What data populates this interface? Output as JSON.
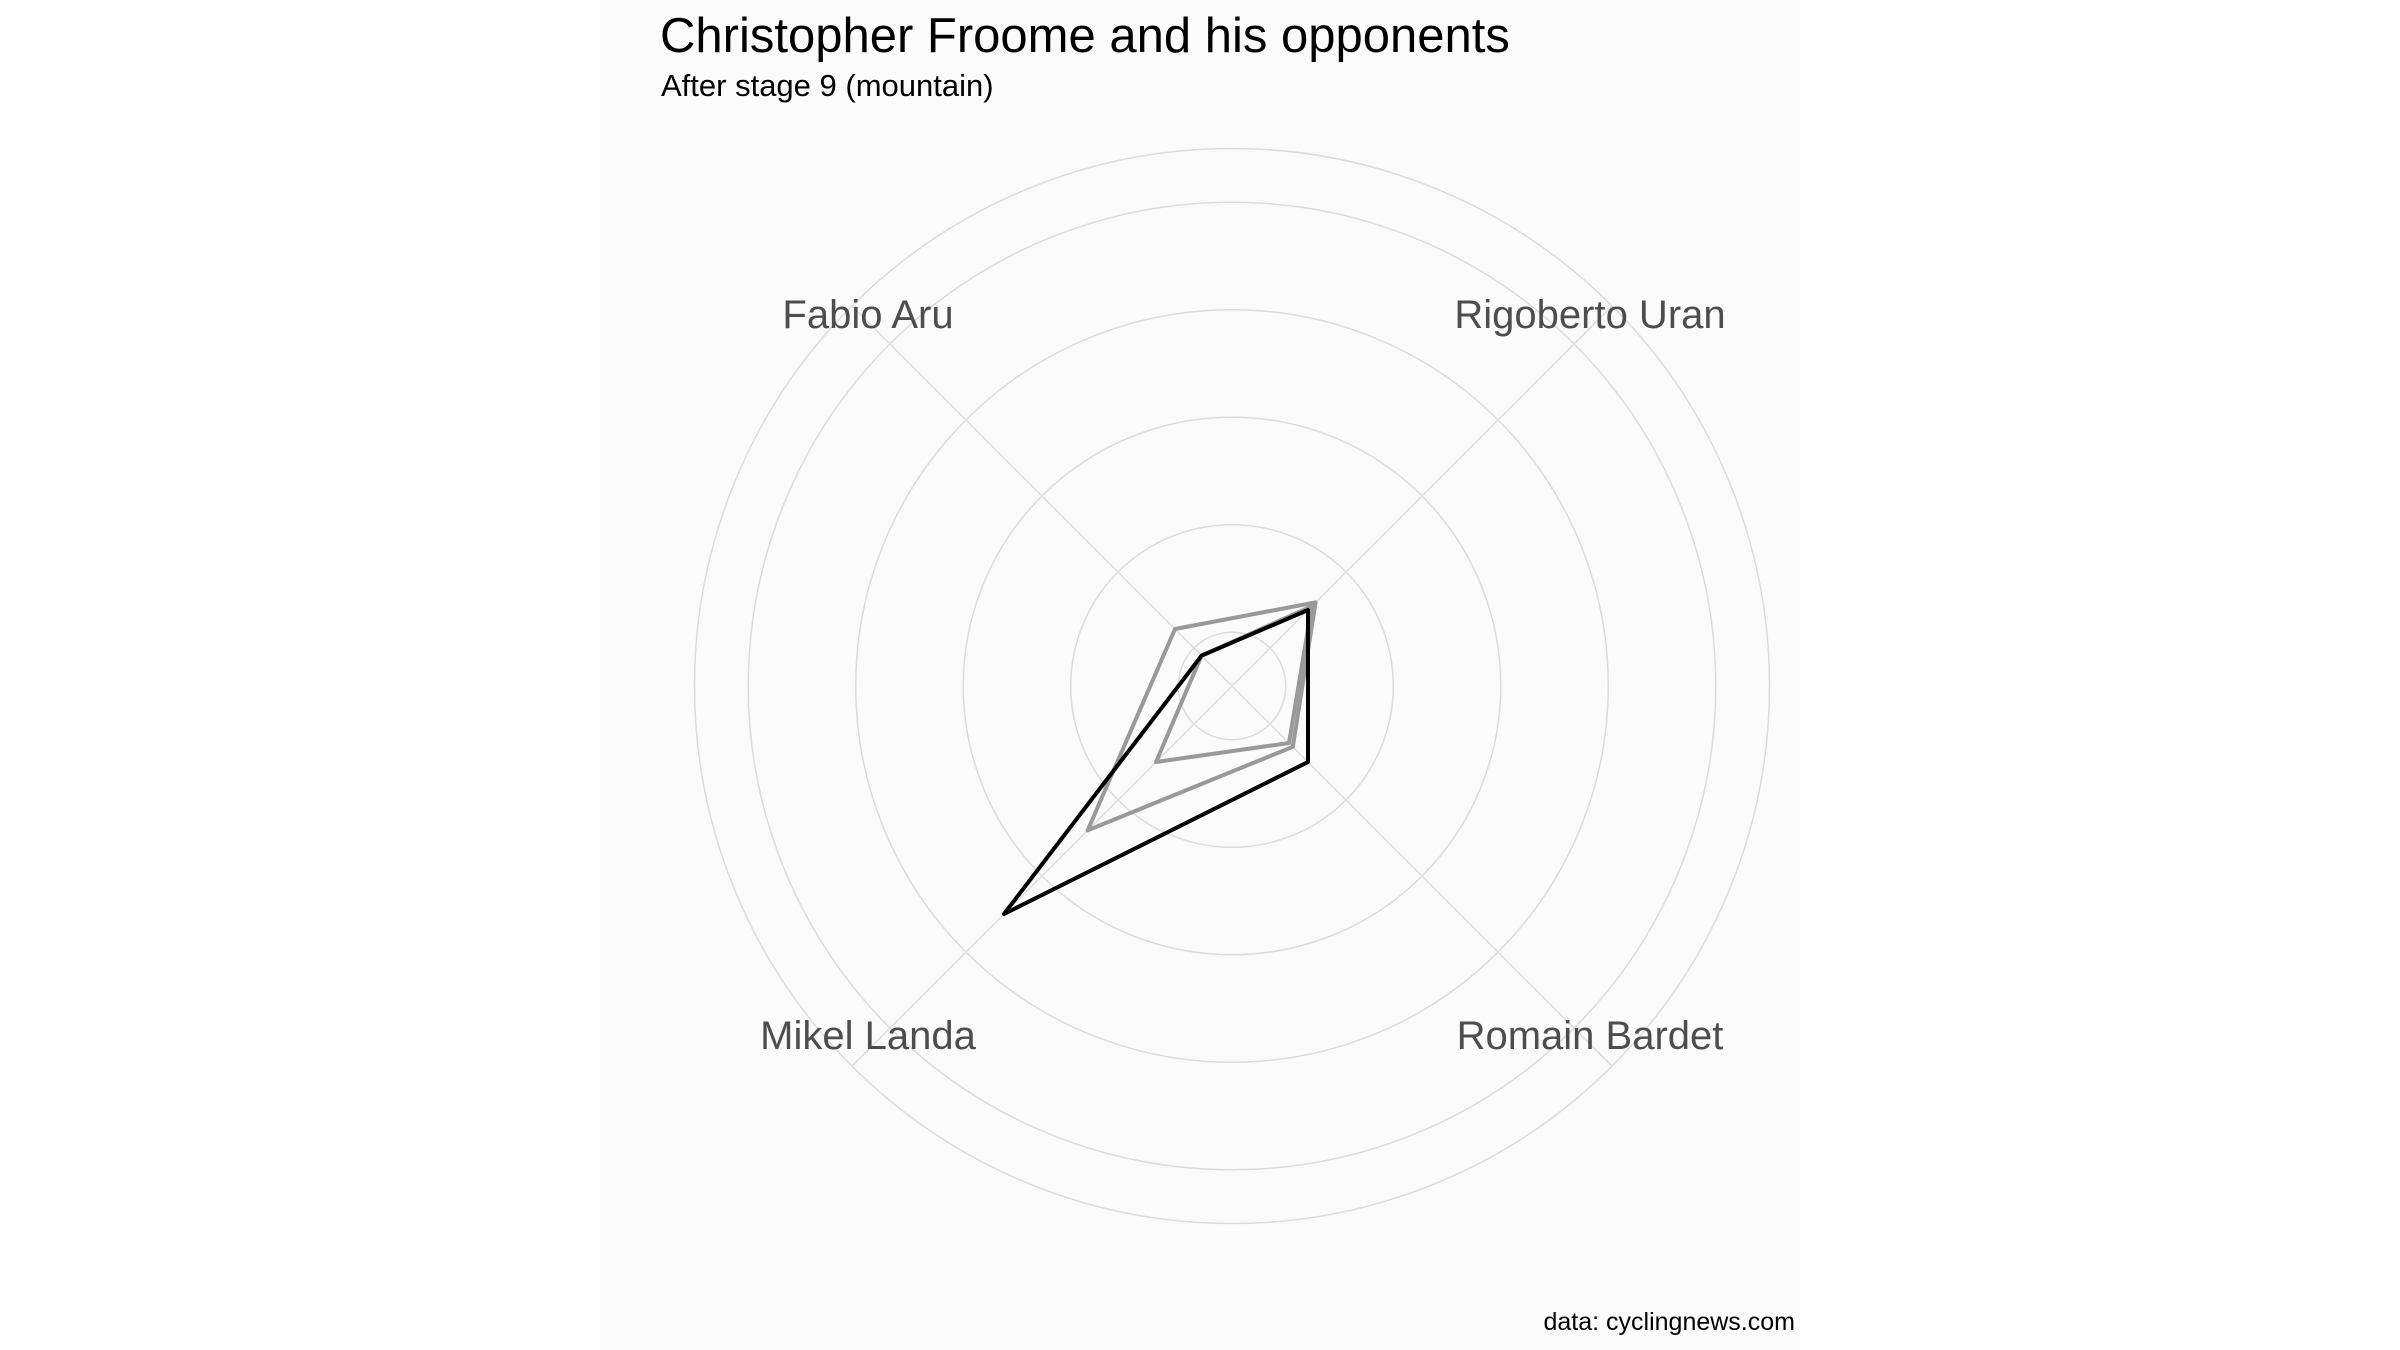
{
  "chart_data": {
    "type": "radar",
    "title": "Christopher Froome and his opponents",
    "subtitle": "After stage 9 (mountain)",
    "caption": "data: cyclingnews.com",
    "axes": [
      "Rigoberto Uran",
      "Romain Bardet",
      "Mikel Landa",
      "Fabio Aru"
    ],
    "rlim": [
      0,
      5
    ],
    "grid_circles": [
      0.5,
      1.5,
      2.5,
      3.5,
      4.5,
      5
    ],
    "series": [
      {
        "color": "#000000",
        "values": [
          1.0,
          1.0,
          3.0,
          0.4
        ]
      },
      {
        "color": "#999999",
        "values": [
          1.1,
          0.8,
          1.9,
          0.75
        ]
      },
      {
        "color": "#999999",
        "values": [
          1.05,
          0.75,
          1.0,
          0.4
        ]
      }
    ]
  },
  "colors": {
    "panel_background": "#fbfbfb",
    "grid": "#dcdcdc",
    "axis_label": "#4d4d4d"
  }
}
